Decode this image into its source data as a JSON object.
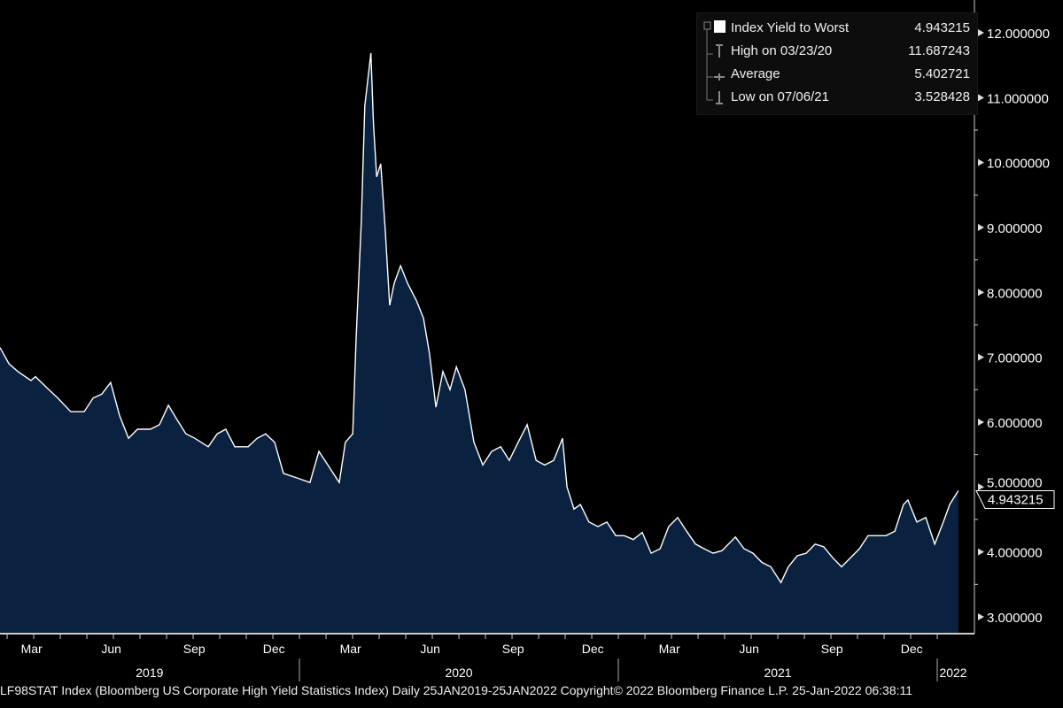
{
  "chart_data": {
    "type": "area",
    "title": "LF98STAT Index (Bloomberg US Corporate High Yield Statistics Index)",
    "series": [
      {
        "name": "Index Yield to Worst",
        "x_unit": "decimal year",
        "points": [
          [
            2019.061,
            7.15
          ],
          [
            2019.089,
            6.9
          ],
          [
            2019.117,
            6.78
          ],
          [
            2019.158,
            6.64
          ],
          [
            2019.172,
            6.7
          ],
          [
            2019.214,
            6.5
          ],
          [
            2019.242,
            6.37
          ],
          [
            2019.283,
            6.16
          ],
          [
            2019.325,
            6.16
          ],
          [
            2019.353,
            6.37
          ],
          [
            2019.38,
            6.43
          ],
          [
            2019.408,
            6.61
          ],
          [
            2019.436,
            6.1
          ],
          [
            2019.464,
            5.75
          ],
          [
            2019.492,
            5.89
          ],
          [
            2019.533,
            5.89
          ],
          [
            2019.561,
            5.96
          ],
          [
            2019.589,
            6.26
          ],
          [
            2019.617,
            6.03
          ],
          [
            2019.644,
            5.82
          ],
          [
            2019.672,
            5.75
          ],
          [
            2019.714,
            5.62
          ],
          [
            2019.742,
            5.82
          ],
          [
            2019.769,
            5.89
          ],
          [
            2019.797,
            5.62
          ],
          [
            2019.839,
            5.62
          ],
          [
            2019.867,
            5.75
          ],
          [
            2019.894,
            5.82
          ],
          [
            2019.922,
            5.69
          ],
          [
            2019.95,
            5.21
          ],
          [
            2019.992,
            5.14
          ],
          [
            2020.033,
            5.07
          ],
          [
            2020.061,
            5.55
          ],
          [
            2020.089,
            5.34
          ],
          [
            2020.125,
            5.07
          ],
          [
            2020.144,
            5.69
          ],
          [
            2020.167,
            5.82
          ],
          [
            2020.178,
            7.32
          ],
          [
            2020.194,
            9.1
          ],
          [
            2020.205,
            10.87
          ],
          [
            2020.224,
            11.687
          ],
          [
            2020.232,
            10.6
          ],
          [
            2020.242,
            9.78
          ],
          [
            2020.255,
            9.98
          ],
          [
            2020.269,
            8.96
          ],
          [
            2020.283,
            7.8
          ],
          [
            2020.297,
            8.14
          ],
          [
            2020.317,
            8.41
          ],
          [
            2020.339,
            8.14
          ],
          [
            2020.367,
            7.87
          ],
          [
            2020.389,
            7.6
          ],
          [
            2020.408,
            7.05
          ],
          [
            2020.428,
            6.23
          ],
          [
            2020.45,
            6.78
          ],
          [
            2020.472,
            6.5
          ],
          [
            2020.492,
            6.85
          ],
          [
            2020.519,
            6.5
          ],
          [
            2020.547,
            5.69
          ],
          [
            2020.575,
            5.34
          ],
          [
            2020.603,
            5.55
          ],
          [
            2020.631,
            5.62
          ],
          [
            2020.658,
            5.41
          ],
          [
            2020.686,
            5.69
          ],
          [
            2020.714,
            5.96
          ],
          [
            2020.742,
            5.41
          ],
          [
            2020.769,
            5.34
          ],
          [
            2020.797,
            5.41
          ],
          [
            2020.825,
            5.75
          ],
          [
            2020.839,
            5.0
          ],
          [
            2020.861,
            4.66
          ],
          [
            2020.881,
            4.73
          ],
          [
            2020.908,
            4.46
          ],
          [
            2020.936,
            4.39
          ],
          [
            2020.964,
            4.46
          ],
          [
            2020.992,
            4.25
          ],
          [
            2021.019,
            4.25
          ],
          [
            2021.047,
            4.19
          ],
          [
            2021.075,
            4.3
          ],
          [
            2021.103,
            3.98
          ],
          [
            2021.131,
            4.05
          ],
          [
            2021.158,
            4.39
          ],
          [
            2021.186,
            4.53
          ],
          [
            2021.214,
            4.32
          ],
          [
            2021.242,
            4.12
          ],
          [
            2021.269,
            4.05
          ],
          [
            2021.297,
            3.98
          ],
          [
            2021.325,
            4.02
          ],
          [
            2021.367,
            4.23
          ],
          [
            2021.394,
            4.05
          ],
          [
            2021.422,
            3.98
          ],
          [
            2021.45,
            3.84
          ],
          [
            2021.478,
            3.77
          ],
          [
            2021.51,
            3.528
          ],
          [
            2021.533,
            3.77
          ],
          [
            2021.561,
            3.94
          ],
          [
            2021.589,
            3.98
          ],
          [
            2021.617,
            4.12
          ],
          [
            2021.644,
            4.08
          ],
          [
            2021.672,
            3.91
          ],
          [
            2021.7,
            3.77
          ],
          [
            2021.728,
            3.91
          ],
          [
            2021.756,
            4.05
          ],
          [
            2021.783,
            4.25
          ],
          [
            2021.811,
            4.25
          ],
          [
            2021.839,
            4.25
          ],
          [
            2021.867,
            4.32
          ],
          [
            2021.894,
            4.73
          ],
          [
            2021.908,
            4.8
          ],
          [
            2021.936,
            4.46
          ],
          [
            2021.964,
            4.53
          ],
          [
            2021.992,
            4.12
          ],
          [
            2022.019,
            4.46
          ],
          [
            2022.039,
            4.73
          ],
          [
            2022.066,
            4.943215
          ]
        ]
      }
    ],
    "xlim": [
      2019.061,
      2022.1
    ],
    "ylim": [
      2.8,
      12.35
    ],
    "y_ticks": [
      "3.000000",
      "4.000000",
      "5.000000",
      "6.000000",
      "7.000000",
      "8.000000",
      "9.000000",
      "10.000000",
      "11.000000",
      "12.000000"
    ],
    "x_month_ticks": [
      {
        "label": "Mar",
        "t": 2019.16
      },
      {
        "label": "Jun",
        "t": 2019.41
      },
      {
        "label": "Sep",
        "t": 2019.67
      },
      {
        "label": "Dec",
        "t": 2019.92
      },
      {
        "label": "Mar",
        "t": 2020.16
      },
      {
        "label": "Jun",
        "t": 2020.41
      },
      {
        "label": "Sep",
        "t": 2020.67
      },
      {
        "label": "Dec",
        "t": 2020.92
      },
      {
        "label": "Mar",
        "t": 2021.16
      },
      {
        "label": "Jun",
        "t": 2021.41
      },
      {
        "label": "Sep",
        "t": 2021.67
      },
      {
        "label": "Dec",
        "t": 2021.92
      }
    ],
    "x_year_labels": [
      {
        "label": "2019",
        "t": 2019.53
      },
      {
        "label": "2020",
        "t": 2020.5
      },
      {
        "label": "2021",
        "t": 2021.5
      },
      {
        "label": "2022",
        "t": 2022.05
      }
    ],
    "year_dividers": [
      2020.0,
      2021.0,
      2022.0
    ],
    "last_value_label": "4.943215",
    "legend_placement": "top-right",
    "colors": {
      "fill": "#0a2240",
      "line": "#ffffff",
      "axis": "#ffffff",
      "text": "#ffffff"
    }
  },
  "legend": {
    "rows": [
      {
        "label": "Index Yield to Worst",
        "value": "4.943215"
      },
      {
        "label": "High on 03/23/20",
        "value": "11.687243"
      },
      {
        "label": "Average",
        "value": "5.402721"
      },
      {
        "label": "Low on 07/06/21",
        "value": "3.528428"
      }
    ]
  },
  "footer": "LF98STAT Index (Bloomberg US Corporate High Yield Statistics Index)  Daily 25JAN2019-25JAN2022 Copyright© 2022 Bloomberg Finance L.P. 25-Jan-2022 06:38:11"
}
